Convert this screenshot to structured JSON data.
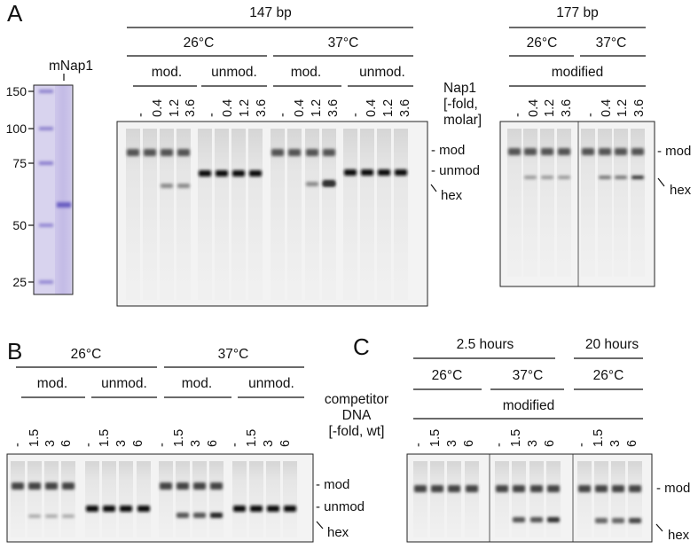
{
  "panelA": {
    "letter": "A",
    "marker": {
      "label": "mNap1",
      "ladder": [
        "150",
        "100",
        "75",
        "50",
        "25"
      ]
    },
    "group147": {
      "size": "147 bp",
      "temps": [
        "26°C",
        "37°C"
      ],
      "mods": [
        "mod.",
        "unmod.",
        "mod.",
        "unmod."
      ],
      "lanes": [
        "-",
        "0.4",
        "1.2",
        "3.6",
        "-",
        "0.4",
        "1.2",
        "3.6",
        "-",
        "0.4",
        "1.2",
        "3.6",
        "-",
        "0.4",
        "1.2",
        "3.6"
      ]
    },
    "nap1_label": [
      "Nap1",
      "[-fold,",
      "molar]"
    ],
    "gel_labels": [
      "- mod",
      "- unmod",
      "hex"
    ],
    "group177": {
      "size": "177 bp",
      "temps": [
        "26°C",
        "37°C"
      ],
      "mod": "modified",
      "lanes": [
        "-",
        "0.4",
        "1.2",
        "3.6",
        "-",
        "0.4",
        "1.2",
        "3.6"
      ],
      "gel_labels": [
        "- mod",
        "hex"
      ]
    }
  },
  "panelB": {
    "letter": "B",
    "temps": [
      "26°C",
      "37°C"
    ],
    "mods": [
      "mod.",
      "unmod.",
      "mod.",
      "unmod."
    ],
    "lanes": [
      "-",
      "1.5",
      "3",
      "6",
      "-",
      "1.5",
      "3",
      "6",
      "-",
      "1.5",
      "3",
      "6",
      "-",
      "1.5",
      "3",
      "6"
    ],
    "competitor_label": [
      "competitor",
      "DNA",
      "[-fold, wt]"
    ],
    "gel_labels": [
      "- mod",
      "- unmod",
      "hex"
    ]
  },
  "panelC": {
    "letter": "C",
    "times": [
      "2.5 hours",
      "20 hours"
    ],
    "temps": [
      "26°C",
      "37°C",
      "26°C"
    ],
    "mod": "modified",
    "lanes": [
      "-",
      "1.5",
      "3",
      "6",
      "-",
      "1.5",
      "3",
      "6",
      "-",
      "1.5",
      "3",
      "6"
    ],
    "gel_labels": [
      "- mod",
      "hex"
    ]
  }
}
